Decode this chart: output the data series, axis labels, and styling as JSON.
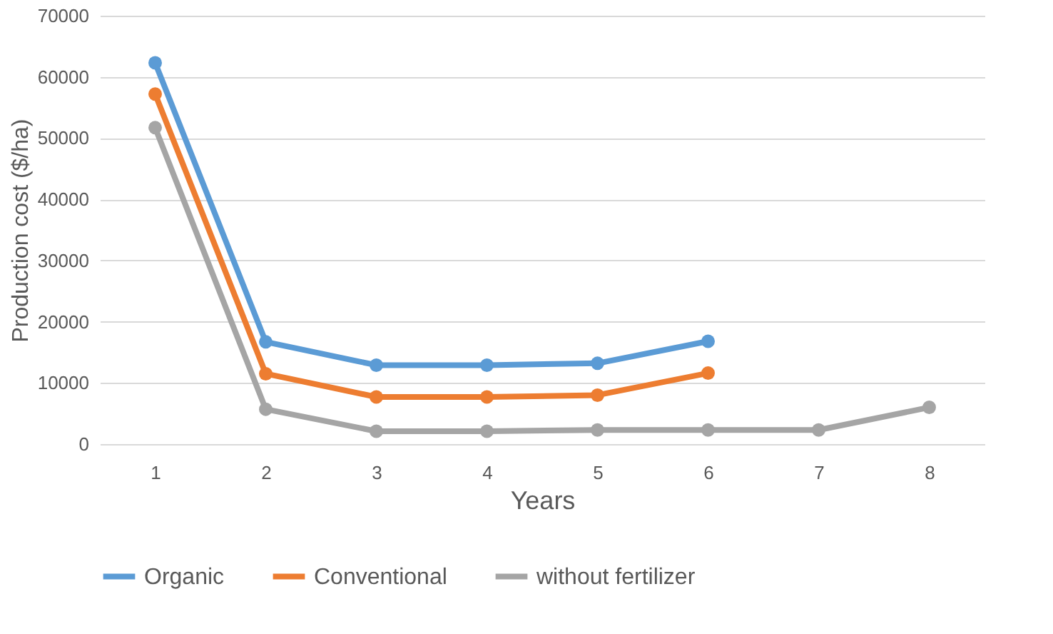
{
  "chart_data": {
    "type": "line",
    "xlabel": "Years",
    "ylabel": "Production cost ($/ha)",
    "categories": [
      "1",
      "2",
      "3",
      "4",
      "5",
      "6",
      "7",
      "8"
    ],
    "series": [
      {
        "name": "Organic",
        "color": "#5b9bd5",
        "values": [
          62300,
          16700,
          12900,
          12900,
          13200,
          16800,
          null,
          null
        ]
      },
      {
        "name": "Conventional",
        "color": "#ed7d31",
        "values": [
          57200,
          11500,
          7700,
          7700,
          8000,
          11600,
          null,
          null
        ]
      },
      {
        "name": "without fertilizer",
        "color": "#a5a5a5",
        "values": [
          51700,
          5700,
          2100,
          2100,
          2300,
          2300,
          2300,
          6000
        ]
      }
    ],
    "ylim": [
      0,
      70000
    ],
    "yticks": [
      0,
      10000,
      20000,
      30000,
      40000,
      50000,
      60000,
      70000
    ],
    "grid": "y",
    "legend": "bottom",
    "marker": "circle",
    "line_style": "solid"
  }
}
